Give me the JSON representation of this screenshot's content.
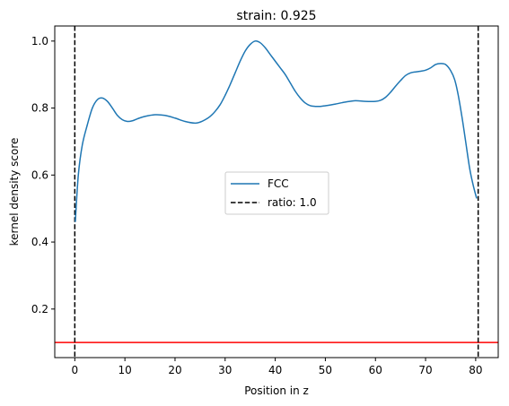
{
  "chart_data": {
    "type": "line",
    "title": "strain: 0.925",
    "xlabel": "Position in z",
    "ylabel": "kernel density score",
    "xlim": [
      -4.0,
      84.5
    ],
    "ylim": [
      0.055,
      1.045
    ],
    "xticks": [
      0,
      10,
      20,
      30,
      40,
      50,
      60,
      70,
      80
    ],
    "yticks": [
      0.2,
      0.4,
      0.6,
      0.8,
      1.0
    ],
    "xtick_labels": [
      "0",
      "10",
      "20",
      "30",
      "40",
      "50",
      "60",
      "70",
      "80"
    ],
    "ytick_labels": [
      "0.2",
      "0.4",
      "0.6",
      "0.8",
      "1.0"
    ],
    "grid": false,
    "legend_position": "center",
    "series": [
      {
        "name": "FCC",
        "color": "#1f77b4",
        "style": "solid",
        "x": [
          0.1,
          0.7,
          1.5,
          2.5,
          3.5,
          4.5,
          5.5,
          6.5,
          7.5,
          8.5,
          9.5,
          10.5,
          11.5,
          12.5,
          14,
          16,
          18,
          20,
          22,
          24,
          25,
          26,
          27,
          28,
          29,
          30,
          31,
          32,
          33,
          34,
          35,
          36,
          37,
          38,
          39,
          40,
          41,
          42,
          43,
          44,
          45,
          46,
          47,
          48,
          49,
          50,
          52,
          54,
          56,
          58,
          60,
          61,
          62,
          63,
          64,
          65,
          66,
          67,
          68,
          69,
          70,
          71,
          72,
          73,
          74,
          75,
          75.8,
          76.5,
          77.3,
          78,
          78.8,
          79.5,
          80.2
        ],
        "y": [
          0.46,
          0.6,
          0.69,
          0.75,
          0.8,
          0.825,
          0.83,
          0.82,
          0.8,
          0.778,
          0.765,
          0.76,
          0.762,
          0.768,
          0.775,
          0.78,
          0.778,
          0.77,
          0.76,
          0.755,
          0.758,
          0.765,
          0.775,
          0.79,
          0.81,
          0.838,
          0.87,
          0.905,
          0.94,
          0.97,
          0.99,
          1.0,
          0.995,
          0.98,
          0.96,
          0.94,
          0.92,
          0.9,
          0.875,
          0.85,
          0.83,
          0.815,
          0.807,
          0.805,
          0.805,
          0.807,
          0.812,
          0.818,
          0.822,
          0.82,
          0.82,
          0.823,
          0.832,
          0.847,
          0.865,
          0.882,
          0.897,
          0.905,
          0.908,
          0.91,
          0.913,
          0.92,
          0.93,
          0.933,
          0.93,
          0.912,
          0.885,
          0.84,
          0.77,
          0.7,
          0.62,
          0.57,
          0.53
        ]
      }
    ],
    "vlines": [
      {
        "name": "ratio: 1.0",
        "x": 0.0,
        "color": "#000000",
        "style": "dashed"
      },
      {
        "x": 80.5,
        "color": "#000000",
        "style": "dashed"
      }
    ],
    "hlines": [
      {
        "y": 0.1,
        "color": "#ff0000",
        "style": "solid"
      }
    ],
    "legend": [
      {
        "label": "FCC",
        "color": "#1f77b4",
        "style": "solid"
      },
      {
        "label": "ratio: 1.0",
        "color": "#000000",
        "style": "dashed"
      }
    ]
  }
}
